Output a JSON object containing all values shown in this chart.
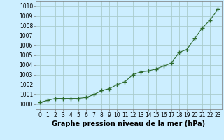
{
  "x": [
    0,
    1,
    2,
    3,
    4,
    5,
    6,
    7,
    8,
    9,
    10,
    11,
    12,
    13,
    14,
    15,
    16,
    17,
    18,
    19,
    20,
    21,
    22,
    23
  ],
  "y": [
    1000.2,
    1000.4,
    1000.6,
    1000.6,
    1000.6,
    1000.6,
    1000.7,
    1001.0,
    1001.4,
    1001.6,
    1002.0,
    1002.3,
    1003.0,
    1003.3,
    1003.4,
    1003.6,
    1003.9,
    1004.2,
    1005.3,
    1005.6,
    1006.7,
    1007.8,
    1008.6,
    1009.7
  ],
  "ylim": [
    999.5,
    1010.5
  ],
  "yticks": [
    1000,
    1001,
    1002,
    1003,
    1004,
    1005,
    1006,
    1007,
    1008,
    1009,
    1010
  ],
  "xticks": [
    0,
    1,
    2,
    3,
    4,
    5,
    6,
    7,
    8,
    9,
    10,
    11,
    12,
    13,
    14,
    15,
    16,
    17,
    18,
    19,
    20,
    21,
    22,
    23
  ],
  "xlabel": "Graphe pression niveau de la mer (hPa)",
  "line_color": "#2d6a2d",
  "marker": "+",
  "marker_size": 4,
  "marker_linewidth": 1.0,
  "linewidth": 0.8,
  "bg_color": "#cceeff",
  "grid_color": "#aacccc",
  "xlabel_fontsize": 7,
  "tick_fontsize": 5.5
}
